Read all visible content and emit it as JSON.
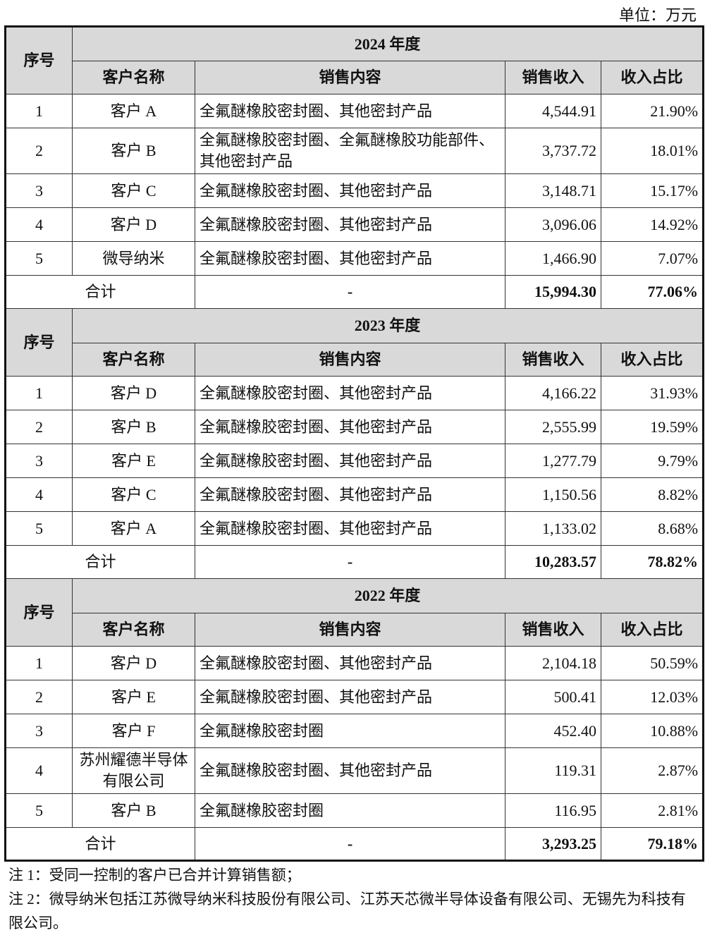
{
  "unit_label": "单位：万元",
  "headers": {
    "seq": "序号",
    "customer": "客户名称",
    "content": "销售内容",
    "revenue": "销售收入",
    "share": "收入占比"
  },
  "sections": [
    {
      "year": "2024 年度",
      "rows": [
        {
          "seq": "1",
          "customer": "客户 A",
          "content": "全氟醚橡胶密封圈、其他密封产品",
          "revenue": "4,544.91",
          "share": "21.90%"
        },
        {
          "seq": "2",
          "customer": "客户 B",
          "content": "全氟醚橡胶密封圈、全氟醚橡胶功能部件、其他密封产品",
          "revenue": "3,737.72",
          "share": "18.01%"
        },
        {
          "seq": "3",
          "customer": "客户 C",
          "content": "全氟醚橡胶密封圈、其他密封产品",
          "revenue": "3,148.71",
          "share": "15.17%"
        },
        {
          "seq": "4",
          "customer": "客户 D",
          "content": "全氟醚橡胶密封圈、其他密封产品",
          "revenue": "3,096.06",
          "share": "14.92%"
        },
        {
          "seq": "5",
          "customer": "微导纳米",
          "content": "全氟醚橡胶密封圈、其他密封产品",
          "revenue": "1,466.90",
          "share": "7.07%"
        }
      ],
      "total": {
        "label": "合计",
        "content": "-",
        "revenue": "15,994.30",
        "share": "77.06%"
      }
    },
    {
      "year": "2023 年度",
      "rows": [
        {
          "seq": "1",
          "customer": "客户 D",
          "content": "全氟醚橡胶密封圈、其他密封产品",
          "revenue": "4,166.22",
          "share": "31.93%"
        },
        {
          "seq": "2",
          "customer": "客户 B",
          "content": "全氟醚橡胶密封圈、其他密封产品",
          "revenue": "2,555.99",
          "share": "19.59%"
        },
        {
          "seq": "3",
          "customer": "客户 E",
          "content": "全氟醚橡胶密封圈、其他密封产品",
          "revenue": "1,277.79",
          "share": "9.79%"
        },
        {
          "seq": "4",
          "customer": "客户 C",
          "content": "全氟醚橡胶密封圈、其他密封产品",
          "revenue": "1,150.56",
          "share": "8.82%"
        },
        {
          "seq": "5",
          "customer": "客户 A",
          "content": "全氟醚橡胶密封圈、其他密封产品",
          "revenue": "1,133.02",
          "share": "8.68%"
        }
      ],
      "total": {
        "label": "合计",
        "content": "-",
        "revenue": "10,283.57",
        "share": "78.82%"
      }
    },
    {
      "year": "2022 年度",
      "rows": [
        {
          "seq": "1",
          "customer": "客户 D",
          "content": "全氟醚橡胶密封圈、其他密封产品",
          "revenue": "2,104.18",
          "share": "50.59%"
        },
        {
          "seq": "2",
          "customer": "客户 E",
          "content": "全氟醚橡胶密封圈、其他密封产品",
          "revenue": "500.41",
          "share": "12.03%"
        },
        {
          "seq": "3",
          "customer": "客户 F",
          "content": "全氟醚橡胶密封圈",
          "revenue": "452.40",
          "share": "10.88%"
        },
        {
          "seq": "4",
          "customer": "苏州耀德半导体有限公司",
          "content": "全氟醚橡胶密封圈、其他密封产品",
          "revenue": "119.31",
          "share": "2.87%"
        },
        {
          "seq": "5",
          "customer": "客户 B",
          "content": "全氟醚橡胶密封圈",
          "revenue": "116.95",
          "share": "2.81%"
        }
      ],
      "total": {
        "label": "合计",
        "content": "-",
        "revenue": "3,293.25",
        "share": "79.18%"
      }
    }
  ],
  "notes": [
    "注 1：受同一控制的客户已合并计算销售额；",
    "注 2：微导纳米包括江苏微导纳米科技股份有限公司、江苏天芯微半导体设备有限公司、无锡先为科技有限公司。"
  ]
}
